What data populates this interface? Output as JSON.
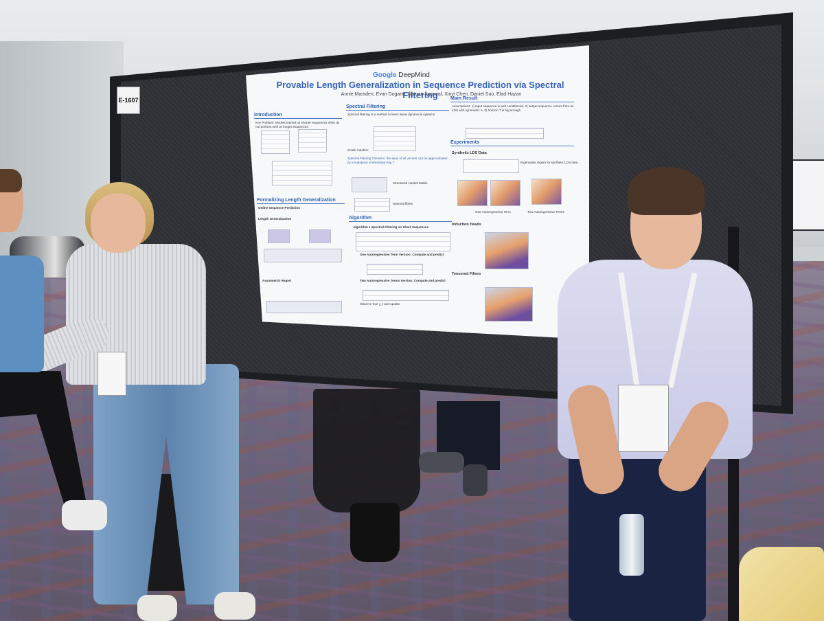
{
  "scene": {
    "booth_number": "E-1607"
  },
  "poster": {
    "logo_brand": "Google",
    "logo_product": "DeepMind",
    "title": "Provable Length Generalization in Sequence Prediction via Spectral Filtering",
    "authors": "Annie Marsden, Evan Dogariu, Naman Agarwal, Xinyi Chen, Daniel Suo, Elad Hazan",
    "sections": {
      "introduction": "Introduction",
      "formalizing": "Formalizing Length Generalization",
      "spectral_filtering": "Spectral Filtering",
      "algorithm": "Algorithm",
      "main_result": "Main Result",
      "experiments": "Experiments",
      "synthetic_lds": "Synthetic LDS Data",
      "induction_heads": "Induction Heads",
      "tensored_filters": "Tensored Filters"
    },
    "snippets": {
      "key_problem": "Key Problem: Models trained on shorter sequences often do not perform well on longer sequences.",
      "online_sequence_prediction": "Online Sequence Prediction",
      "length_generalization": "Length Generalization",
      "asymmetric_regret": "Asymmetric Regret",
      "spectral_intro": "Spectral filtering is a method to learn linear dynamical systems",
      "scalar_intuition": "Scalar intuition:",
      "spectral_theorem": "Spectral Filtering Theorem: the span of all vectors can be approximated by a subspace of dimension log T",
      "hankel": "Structured Hankel Matrix",
      "spectral_filters": "Spectral filters",
      "algo_caption": "Algorithm 1 Spectral Filtering on Short Sequences",
      "one_term": "One Autoregressive Term Version: Compute and predict",
      "two_term": "Two Autoregressive Terms Version: Compute and predict",
      "observe": "Observe true y_t and update",
      "assumptions": "Assumptions: 1) input sequence is well conditioned, 2) output sequence comes from an LDS with symmetric A, 3) horizon T is big enough",
      "eigen_region": "Eigenvalue region for synthetic LDS data",
      "one_auto": "One Autoregressive Term",
      "two_auto": "Two Autoregressive Terms"
    }
  }
}
